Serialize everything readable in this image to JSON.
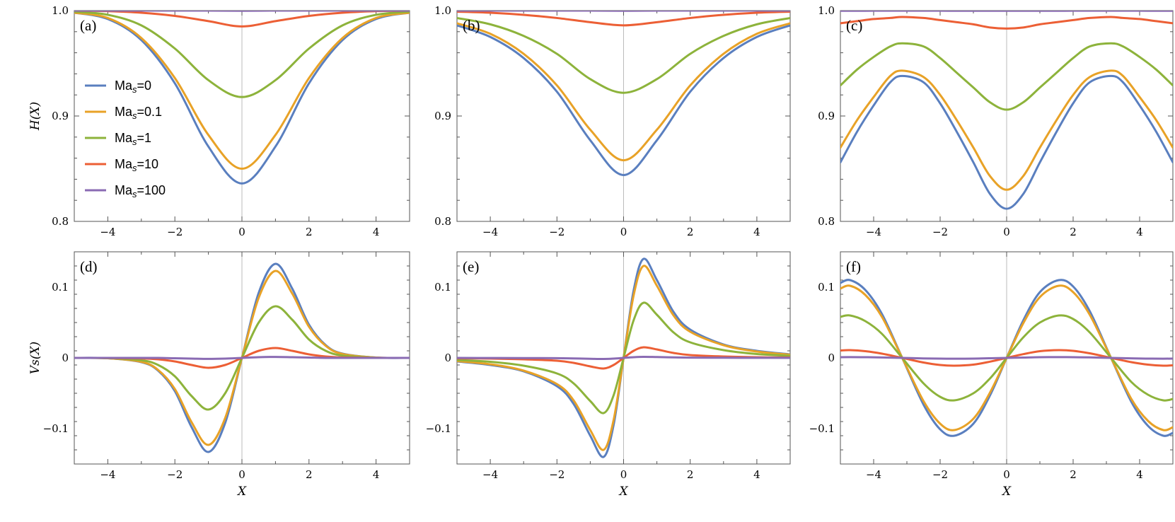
{
  "colors": {
    "series": [
      "#5a7fbf",
      "#e8a227",
      "#8db33b",
      "#ec5f35",
      "#8a6bb3"
    ],
    "frame": "#555555",
    "zero_line": "#bbbbbb"
  },
  "legend": {
    "items": [
      {
        "prefix": "Ma",
        "sub": "s",
        "suffix": "=0"
      },
      {
        "prefix": "Ma",
        "sub": "s",
        "suffix": "=0.1"
      },
      {
        "prefix": "Ma",
        "sub": "s",
        "suffix": "=1"
      },
      {
        "prefix": "Ma",
        "sub": "s",
        "suffix": "=10"
      },
      {
        "prefix": "Ma",
        "sub": "s",
        "suffix": "=100"
      }
    ]
  },
  "chart_data": [
    {
      "type": "line",
      "panel_label": "(a)",
      "xlim": [
        -5,
        5
      ],
      "ylim": [
        0.8,
        1.0
      ],
      "xticks": [
        -4,
        -2,
        0,
        2,
        4
      ],
      "yticks": [
        0.8,
        0.9,
        1.0
      ],
      "xticklabels": [
        "−4",
        "−2",
        "0",
        "2",
        "4"
      ],
      "yticklabels": [
        "0.8",
        "0.9",
        "1.0"
      ],
      "xlabel": "",
      "ylabel": "H(X)",
      "x": [
        -5,
        -4,
        -3,
        -2,
        -1,
        0,
        1,
        2,
        3,
        4,
        5
      ],
      "series": [
        {
          "name": "Mas=0",
          "values": [
            0.998,
            0.992,
            0.972,
            0.931,
            0.871,
            0.836,
            0.871,
            0.931,
            0.972,
            0.992,
            0.998
          ]
        },
        {
          "name": "Mas=0.1",
          "values": [
            0.998,
            0.993,
            0.974,
            0.936,
            0.882,
            0.85,
            0.882,
            0.936,
            0.974,
            0.993,
            0.998
          ]
        },
        {
          "name": "Mas=1",
          "values": [
            0.999,
            0.996,
            0.986,
            0.964,
            0.934,
            0.918,
            0.934,
            0.964,
            0.986,
            0.996,
            0.999
          ]
        },
        {
          "name": "Mas=10",
          "values": [
            1.0,
            0.9995,
            0.998,
            0.995,
            0.99,
            0.985,
            0.99,
            0.995,
            0.998,
            0.9995,
            1.0
          ]
        },
        {
          "name": "Mas=100",
          "values": [
            1.0,
            1.0,
            1.0,
            1.0,
            1.0,
            0.9998,
            1.0,
            1.0,
            1.0,
            1.0,
            1.0
          ]
        }
      ]
    },
    {
      "type": "line",
      "panel_label": "(b)",
      "xlim": [
        -5,
        5
      ],
      "ylim": [
        0.8,
        1.0
      ],
      "xticks": [
        -4,
        -2,
        0,
        2,
        4
      ],
      "yticks": [
        0.8,
        0.9,
        1.0
      ],
      "xticklabels": [
        "−4",
        "−2",
        "0",
        "2",
        "4"
      ],
      "yticklabels": [
        "0.8",
        "0.9",
        "1.0"
      ],
      "xlabel": "",
      "ylabel": "",
      "x": [
        -5,
        -4,
        -3,
        -2,
        -1,
        0,
        1,
        2,
        3,
        4,
        5
      ],
      "series": [
        {
          "name": "Mas=0",
          "values": [
            0.986,
            0.975,
            0.955,
            0.923,
            0.877,
            0.844,
            0.877,
            0.923,
            0.955,
            0.975,
            0.986
          ]
        },
        {
          "name": "Mas=0.1",
          "values": [
            0.988,
            0.978,
            0.959,
            0.929,
            0.887,
            0.858,
            0.887,
            0.929,
            0.959,
            0.978,
            0.988
          ]
        },
        {
          "name": "Mas=1",
          "values": [
            0.993,
            0.987,
            0.976,
            0.959,
            0.935,
            0.922,
            0.935,
            0.959,
            0.976,
            0.987,
            0.993
          ]
        },
        {
          "name": "Mas=10",
          "values": [
            0.999,
            0.998,
            0.996,
            0.993,
            0.989,
            0.986,
            0.989,
            0.993,
            0.996,
            0.998,
            0.999
          ]
        },
        {
          "name": "Mas=100",
          "values": [
            1.0,
            1.0,
            1.0,
            1.0,
            1.0,
            0.9998,
            1.0,
            1.0,
            1.0,
            1.0,
            1.0
          ]
        }
      ]
    },
    {
      "type": "line",
      "panel_label": "(c)",
      "xlim": [
        -5,
        5
      ],
      "ylim": [
        0.8,
        1.0
      ],
      "xticks": [
        -4,
        -2,
        0,
        2,
        4
      ],
      "yticks": [
        0.8,
        0.9,
        1.0
      ],
      "xticklabels": [
        "−4",
        "−2",
        "0",
        "2",
        "4"
      ],
      "yticklabels": [
        "0.8",
        "0.9",
        "1.0"
      ],
      "xlabel": "",
      "ylabel": "",
      "x": [
        -5,
        -4.5,
        -4,
        -3.5,
        -3.14,
        -2.5,
        -2,
        -1.5,
        -1,
        -0.5,
        0,
        0.5,
        1,
        1.5,
        2,
        2.5,
        3.14,
        3.5,
        4,
        4.5,
        5
      ],
      "series": [
        {
          "name": "Mas=0",
          "values": [
            0.856,
            0.885,
            0.91,
            0.932,
            0.938,
            0.932,
            0.912,
            0.885,
            0.856,
            0.826,
            0.812,
            0.826,
            0.856,
            0.885,
            0.912,
            0.932,
            0.938,
            0.932,
            0.91,
            0.885,
            0.856
          ]
        },
        {
          "name": "Mas=0.1",
          "values": [
            0.87,
            0.896,
            0.918,
            0.938,
            0.943,
            0.937,
            0.92,
            0.896,
            0.87,
            0.843,
            0.83,
            0.843,
            0.87,
            0.896,
            0.92,
            0.937,
            0.943,
            0.938,
            0.918,
            0.896,
            0.87
          ]
        },
        {
          "name": "Mas=1",
          "values": [
            0.929,
            0.944,
            0.956,
            0.966,
            0.969,
            0.966,
            0.955,
            0.941,
            0.927,
            0.913,
            0.906,
            0.913,
            0.927,
            0.941,
            0.955,
            0.966,
            0.969,
            0.966,
            0.956,
            0.944,
            0.929
          ]
        },
        {
          "name": "Mas=10",
          "values": [
            0.988,
            0.99,
            0.992,
            0.993,
            0.994,
            0.993,
            0.991,
            0.989,
            0.987,
            0.984,
            0.983,
            0.984,
            0.987,
            0.989,
            0.991,
            0.993,
            0.994,
            0.993,
            0.992,
            0.99,
            0.988
          ]
        },
        {
          "name": "Mas=100",
          "values": [
            0.9998,
            0.9998,
            0.9999,
            0.9999,
            0.9999,
            0.9999,
            0.9999,
            0.9998,
            0.9998,
            0.9998,
            0.9998,
            0.9998,
            0.9998,
            0.9998,
            0.9999,
            0.9999,
            0.9999,
            0.9999,
            0.9999,
            0.9998,
            0.9998
          ]
        }
      ]
    },
    {
      "type": "line",
      "panel_label": "(d)",
      "xlim": [
        -5,
        5
      ],
      "ylim": [
        -0.15,
        0.15
      ],
      "xticks": [
        -4,
        -2,
        0,
        2,
        4
      ],
      "yticks": [
        -0.1,
        0,
        0.1
      ],
      "xticklabels": [
        "−4",
        "−2",
        "0",
        "2",
        "4"
      ],
      "yticklabels": [
        "−0.1",
        "0",
        "0.1"
      ],
      "xlabel": "X",
      "ylabel": "Vs(X)",
      "x": [
        -5,
        -4,
        -3,
        -2.5,
        -2,
        -1.5,
        -1,
        -0.5,
        0,
        0.5,
        1,
        1.5,
        2,
        2.5,
        3,
        4,
        5
      ],
      "series": [
        {
          "name": "Mas=0",
          "values": [
            0,
            -0.0005,
            -0.006,
            -0.018,
            -0.047,
            -0.098,
            -0.133,
            -0.092,
            0,
            0.092,
            0.133,
            0.098,
            0.047,
            0.018,
            0.006,
            0.0005,
            0
          ]
        },
        {
          "name": "Mas=0.1",
          "values": [
            0,
            -0.0005,
            -0.0055,
            -0.017,
            -0.044,
            -0.091,
            -0.123,
            -0.085,
            0,
            0.085,
            0.123,
            0.091,
            0.044,
            0.017,
            0.0055,
            0.0005,
            0
          ]
        },
        {
          "name": "Mas=1",
          "values": [
            0,
            -0.0003,
            -0.0033,
            -0.01,
            -0.026,
            -0.054,
            -0.073,
            -0.05,
            0,
            0.05,
            0.073,
            0.054,
            0.026,
            0.01,
            0.0033,
            0.0003,
            0
          ]
        },
        {
          "name": "Mas=10",
          "values": [
            0,
            -0.0001,
            -0.0007,
            -0.002,
            -0.005,
            -0.01,
            -0.014,
            -0.01,
            0,
            0.01,
            0.014,
            0.01,
            0.005,
            0.002,
            0.0007,
            0.0001,
            0
          ]
        },
        {
          "name": "Mas=100",
          "values": [
            0,
            0,
            0,
            0,
            -0.0005,
            -0.001,
            -0.0014,
            -0.001,
            0,
            0.001,
            0.0014,
            0.001,
            0.0005,
            0,
            0,
            0,
            0
          ]
        }
      ]
    },
    {
      "type": "line",
      "panel_label": "(e)",
      "xlim": [
        -5,
        5
      ],
      "ylim": [
        -0.15,
        0.15
      ],
      "xticks": [
        -4,
        -2,
        0,
        2,
        4
      ],
      "yticks": [
        -0.1,
        0,
        0.1
      ],
      "xticklabels": [
        "−4",
        "−2",
        "0",
        "2",
        "4"
      ],
      "yticklabels": [
        "−0.1",
        "0",
        "0.1"
      ],
      "xlabel": "X",
      "ylabel": "",
      "x": [
        -5,
        -4,
        -3,
        -2,
        -1.5,
        -1,
        -0.6,
        -0.3,
        0,
        0.3,
        0.6,
        1,
        1.5,
        2,
        3,
        4,
        5
      ],
      "series": [
        {
          "name": "Mas=0",
          "values": [
            -0.005,
            -0.01,
            -0.019,
            -0.04,
            -0.065,
            -0.11,
            -0.14,
            -0.095,
            0,
            0.095,
            0.14,
            0.11,
            0.065,
            0.04,
            0.019,
            0.01,
            0.005
          ]
        },
        {
          "name": "Mas=0.1",
          "values": [
            -0.0045,
            -0.009,
            -0.018,
            -0.037,
            -0.06,
            -0.102,
            -0.13,
            -0.088,
            0,
            0.088,
            0.13,
            0.102,
            0.06,
            0.037,
            0.018,
            0.009,
            0.0045
          ]
        },
        {
          "name": "Mas=1",
          "values": [
            -0.003,
            -0.0055,
            -0.011,
            -0.022,
            -0.036,
            -0.061,
            -0.078,
            -0.053,
            0,
            0.053,
            0.078,
            0.061,
            0.036,
            0.022,
            0.011,
            0.0055,
            0.003
          ]
        },
        {
          "name": "Mas=10",
          "values": [
            -0.0006,
            -0.001,
            -0.002,
            -0.004,
            -0.007,
            -0.012,
            -0.015,
            -0.01,
            0,
            0.01,
            0.015,
            0.012,
            0.007,
            0.004,
            0.002,
            0.001,
            0.0006
          ]
        },
        {
          "name": "Mas=100",
          "values": [
            0,
            -0.0001,
            -0.0002,
            -0.0004,
            -0.0007,
            -0.0012,
            -0.0015,
            -0.001,
            0,
            0.001,
            0.0015,
            0.0012,
            0.0007,
            0.0004,
            0.0002,
            0.0001,
            0
          ]
        }
      ]
    },
    {
      "type": "line",
      "panel_label": "(f)",
      "xlim": [
        -5,
        5
      ],
      "ylim": [
        -0.15,
        0.15
      ],
      "xticks": [
        -4,
        -2,
        0,
        2,
        4
      ],
      "yticks": [
        -0.1,
        0,
        0.1
      ],
      "xticklabels": [
        "−4",
        "−2",
        "0",
        "2",
        "4"
      ],
      "yticklabels": [
        "−0.1",
        "0",
        "0.1"
      ],
      "xlabel": "X",
      "ylabel": "",
      "x": [
        -5,
        -4.71,
        -4.25,
        -3.75,
        -3.14,
        -2.5,
        -2,
        -1.57,
        -1,
        -0.5,
        0,
        0.5,
        1,
        1.57,
        2,
        2.5,
        3.14,
        3.75,
        4.25,
        4.71,
        5
      ],
      "series": [
        {
          "name": "Mas=0",
          "values": [
            0.106,
            0.11,
            0.096,
            0.062,
            0,
            -0.066,
            -0.101,
            -0.11,
            -0.093,
            -0.053,
            0,
            0.053,
            0.093,
            0.11,
            0.101,
            0.066,
            0,
            -0.062,
            -0.096,
            -0.11,
            -0.106
          ]
        },
        {
          "name": "Mas=0.1",
          "values": [
            0.098,
            0.102,
            0.089,
            0.058,
            0,
            -0.061,
            -0.093,
            -0.102,
            -0.086,
            -0.049,
            0,
            0.049,
            0.086,
            0.102,
            0.093,
            0.061,
            0,
            -0.058,
            -0.089,
            -0.102,
            -0.098
          ]
        },
        {
          "name": "Mas=1",
          "values": [
            0.058,
            0.06,
            0.052,
            0.034,
            0,
            -0.036,
            -0.055,
            -0.06,
            -0.05,
            -0.029,
            0,
            0.029,
            0.05,
            0.06,
            0.055,
            0.036,
            0,
            -0.034,
            -0.052,
            -0.06,
            -0.058
          ]
        },
        {
          "name": "Mas=10",
          "values": [
            0.0105,
            0.011,
            0.0095,
            0.006,
            0,
            -0.0065,
            -0.01,
            -0.011,
            -0.0095,
            -0.0053,
            0,
            0.0053,
            0.0095,
            0.011,
            0.01,
            0.0065,
            0,
            -0.006,
            -0.0095,
            -0.011,
            -0.0105
          ]
        },
        {
          "name": "Mas=100",
          "values": [
            0.001,
            0.0011,
            0.001,
            0.0006,
            0,
            -0.0007,
            -0.001,
            -0.0011,
            -0.001,
            -0.0005,
            0,
            0.0005,
            0.001,
            0.0011,
            0.001,
            0.0007,
            0,
            -0.0006,
            -0.001,
            -0.0011,
            -0.001
          ]
        }
      ]
    }
  ]
}
